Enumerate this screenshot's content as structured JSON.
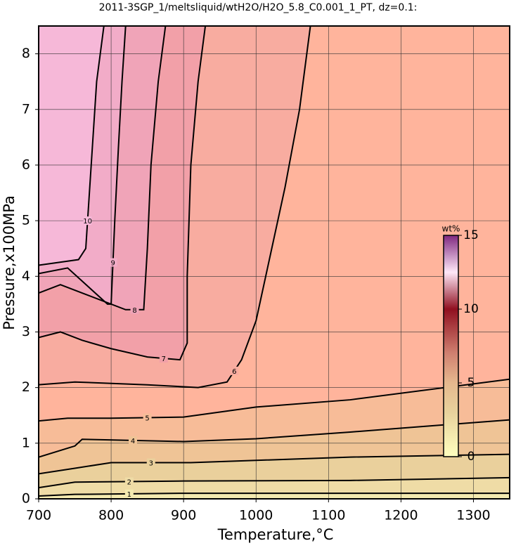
{
  "chart_data": {
    "type": "contour",
    "title": "2011-3SGP_1/meltsliquid/wtH2O/H2O_5.8_C0.001_1_PT, dz=0.1:",
    "xlabel": "Temperature,°C",
    "ylabel": "Pressure,x100MPa",
    "xlim": [
      700,
      1350
    ],
    "ylim": [
      0,
      8.5
    ],
    "xticks": [
      700,
      800,
      900,
      1000,
      1100,
      1200,
      1300
    ],
    "yticks": [
      0,
      1,
      2,
      3,
      4,
      5,
      6,
      7,
      8
    ],
    "grid": true,
    "background": "#ffb49c",
    "contours": [
      {
        "level": 1,
        "fill": "#f4eab0",
        "side": "below",
        "x": [
          700,
          750,
          900,
          1350
        ],
        "y": [
          0.05,
          0.08,
          0.1,
          0.1
        ]
      },
      {
        "level": 2,
        "fill": "#efdca6",
        "side": "below",
        "x": [
          700,
          750,
          900,
          1130,
          1350
        ],
        "y": [
          0.2,
          0.3,
          0.32,
          0.33,
          0.38
        ]
      },
      {
        "level": 3,
        "fill": "#ead09c",
        "side": "below",
        "x": [
          700,
          750,
          800,
          910,
          1130,
          1350
        ],
        "y": [
          0.45,
          0.55,
          0.65,
          0.65,
          0.75,
          0.8
        ]
      },
      {
        "level": 4,
        "fill": "#efc496",
        "side": "below",
        "x": [
          700,
          750,
          760,
          900,
          1000,
          1130,
          1350
        ],
        "y": [
          0.75,
          0.95,
          1.07,
          1.03,
          1.08,
          1.2,
          1.42
        ]
      },
      {
        "level": 5,
        "fill": "#f7bc98",
        "side": "below",
        "x": [
          700,
          740,
          800,
          900,
          1000,
          1130,
          1350
        ],
        "y": [
          1.4,
          1.45,
          1.45,
          1.47,
          1.65,
          1.78,
          2.15
        ]
      },
      {
        "level": 6,
        "fill": "#f8aca0",
        "side": "above",
        "x": [
          700,
          750,
          850,
          920,
          960,
          980,
          1000,
          1020,
          1040,
          1060,
          1075
        ],
        "y": [
          2.05,
          2.1,
          2.05,
          2.0,
          2.1,
          2.5,
          3.2,
          4.4,
          5.6,
          7.0,
          8.5
        ]
      },
      {
        "level": 7,
        "fill": "#f2a0a8",
        "side": "above",
        "x": [
          700,
          730,
          760,
          800,
          850,
          895,
          905,
          905,
          910,
          920,
          930
        ],
        "y": [
          2.9,
          3.0,
          2.85,
          2.7,
          2.55,
          2.5,
          2.8,
          4,
          6,
          7.5,
          8.5
        ]
      },
      {
        "level": 8,
        "fill": "#f0a4b8",
        "side": "above",
        "x": [
          700,
          730,
          760,
          820,
          845,
          850,
          855,
          865,
          875
        ],
        "y": [
          3.7,
          3.85,
          3.7,
          3.4,
          3.4,
          4.5,
          6.0,
          7.5,
          8.5
        ]
      },
      {
        "level": 9,
        "fill": "#f2acc8",
        "side": "above",
        "x": [
          700,
          740,
          795,
          800,
          805,
          810,
          815,
          820
        ],
        "y": [
          4.05,
          4.15,
          3.5,
          3.5,
          5,
          6.3,
          7.5,
          8.5
        ]
      },
      {
        "level": 10,
        "fill": "#f6b8d8",
        "side": "above",
        "x": [
          700,
          755,
          765,
          770,
          775,
          780,
          790
        ],
        "y": [
          4.2,
          4.3,
          4.5,
          5.5,
          6.5,
          7.5,
          8.5
        ]
      }
    ],
    "colorbar": {
      "label": "wt%",
      "lim": [
        0,
        15
      ],
      "ticks": [
        0,
        5,
        10,
        15
      ],
      "stops": [
        {
          "value": 0,
          "color": "#ffffbf"
        },
        {
          "value": 3,
          "color": "#e8d29c"
        },
        {
          "value": 5,
          "color": "#e6b88e"
        },
        {
          "value": 7,
          "color": "#d08070"
        },
        {
          "value": 10,
          "color": "#901020"
        },
        {
          "value": 12.5,
          "color": "#ffe8f8"
        },
        {
          "value": 15,
          "color": "#802880"
        }
      ]
    }
  }
}
